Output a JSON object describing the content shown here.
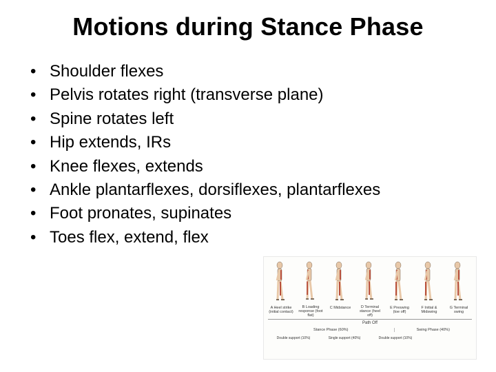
{
  "title": "Motions during Stance Phase",
  "bullets": [
    "Shoulder flexes",
    "Pelvis rotates right (transverse plane)",
    "Spine rotates left",
    "Hip extends, IRs",
    "Knee flexes, extends",
    "Ankle plantarflexes, dorsiflexes, plantarflexes",
    "Foot pronates, supinates",
    "Toes flex, extend, flex"
  ],
  "gait": {
    "figures": [
      {
        "label": "A Heel strike (initial contact)",
        "muscle_side": "back"
      },
      {
        "label": "B Loading response (foot flat)",
        "muscle_side": "front"
      },
      {
        "label": "C Midstance",
        "muscle_side": "back"
      },
      {
        "label": "D Terminal stance (heel off)",
        "muscle_side": "back"
      },
      {
        "label": "E Preswing (toe off)",
        "muscle_side": "front"
      },
      {
        "label": "F Initial & Midswing",
        "muscle_side": "front"
      },
      {
        "label": "G Terminal swing",
        "muscle_side": "back"
      }
    ],
    "axis_title": "Path Off",
    "phase_stance": "Stance Phase (60%)",
    "phase_swing": "Swing Phase (40%)",
    "support": [
      "Double support (10%)",
      "Single support (40%)",
      "Double support (10%)",
      ""
    ],
    "colors": {
      "skin": "#e8c8a8",
      "muscle": "#b8503c",
      "outline": "#7a6a5a",
      "bg": "#fdfdfb"
    }
  }
}
